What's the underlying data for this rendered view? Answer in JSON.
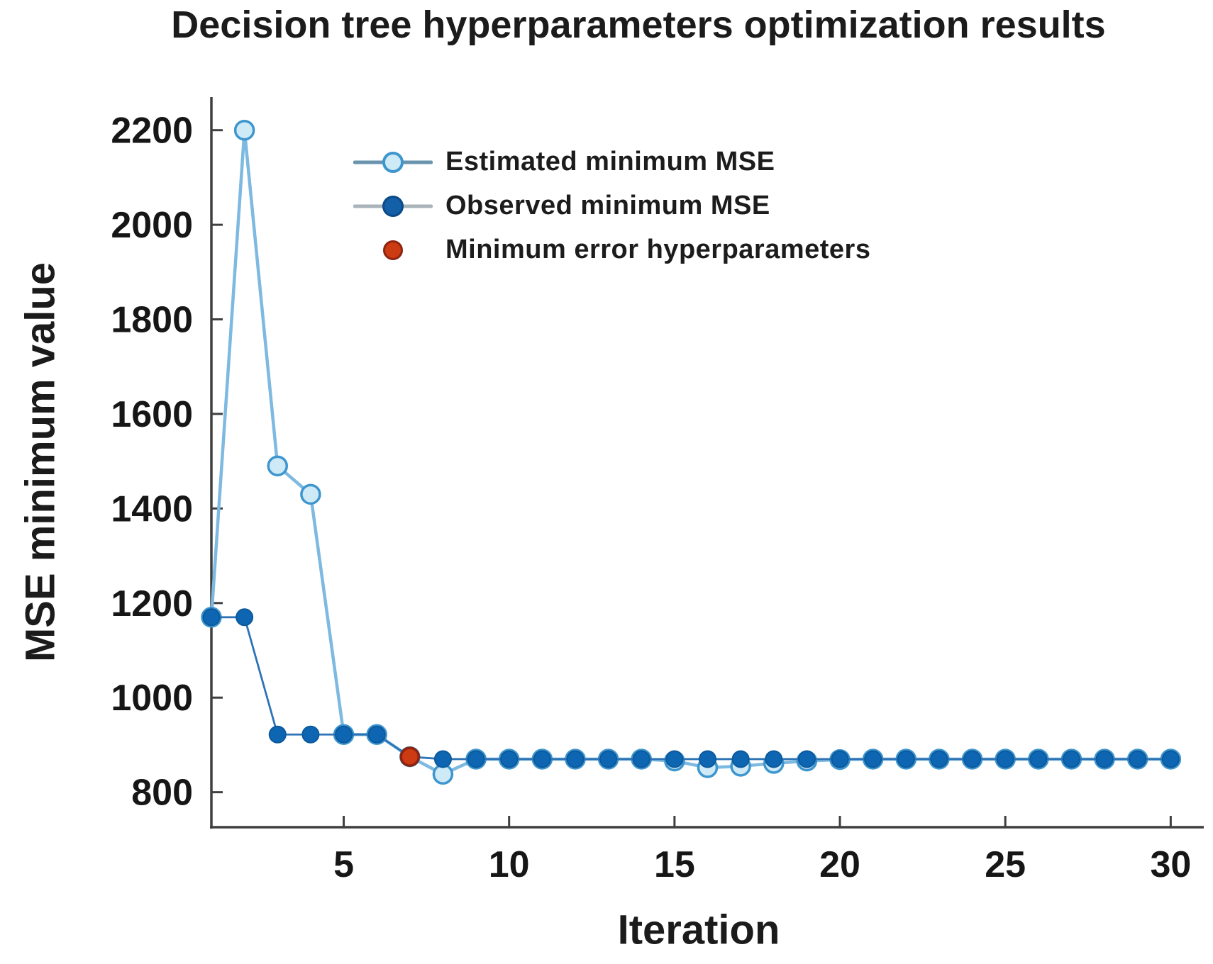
{
  "chart": {
    "title": "Decision tree hyperparameters optimization results",
    "xlabel": "Iteration",
    "ylabel": "MSE minimum value"
  },
  "legend": {
    "items": [
      {
        "label": "Estimated minimum MSE",
        "marker": "open-circle-light-blue-with-line"
      },
      {
        "label": "Observed minimum MSE",
        "marker": "filled-circle-dark-blue-with-line"
      },
      {
        "label": "Minimum error hyperparameters",
        "marker": "filled-circle-red"
      }
    ]
  },
  "colors": {
    "background": "#ffffff",
    "axis": "#3f3f3f",
    "text": "#1b1b1b",
    "tick_text": "#161616",
    "estimated_line": "#7db9e0",
    "estimated_marker_fill": "#cfeaf7",
    "estimated_marker_stroke": "#3e96ce",
    "observed_line": "#2d73b5",
    "observed_marker_fill": "#0e66b2",
    "observed_marker_stroke": "#0b599c",
    "min_marker_fill": "#cd3b12",
    "min_marker_stroke": "#8e2310",
    "legend_line_estimated": "#6a93ae",
    "legend_line_observed": "#a9b3ba"
  },
  "chart_data": {
    "type": "line",
    "title": "Decision tree hyperparameters optimization results",
    "xlabel": "Iteration",
    "ylabel": "MSE minimum value",
    "x": [
      1,
      2,
      3,
      4,
      5,
      6,
      7,
      8,
      9,
      10,
      11,
      12,
      13,
      14,
      15,
      16,
      17,
      18,
      19,
      20,
      21,
      22,
      23,
      24,
      25,
      26,
      27,
      28,
      29,
      30
    ],
    "series": [
      {
        "name": "Estimated minimum MSE",
        "marker": "open-circle",
        "values": [
          1170,
          2200,
          1490,
          1430,
          922,
          922,
          875,
          838,
          870,
          870,
          870,
          870,
          870,
          870,
          866,
          852,
          855,
          861,
          866,
          869,
          870,
          870,
          870,
          870,
          870,
          870,
          870,
          870,
          870,
          870
        ]
      },
      {
        "name": "Observed minimum MSE",
        "marker": "filled-circle",
        "values": [
          1170,
          1170,
          922,
          922,
          922,
          922,
          875,
          870,
          870,
          870,
          870,
          870,
          870,
          870,
          870,
          870,
          870,
          870,
          870,
          870,
          870,
          870,
          870,
          870,
          870,
          870,
          870,
          870,
          870,
          870
        ]
      }
    ],
    "annotations": [
      {
        "name": "Minimum error hyperparameters",
        "x": 7,
        "y": 875
      }
    ],
    "x_ticks": [
      5,
      10,
      15,
      20,
      25,
      30
    ],
    "y_ticks": [
      800,
      1000,
      1200,
      1400,
      1600,
      1800,
      2000,
      2200
    ],
    "xlim": [
      1,
      31
    ],
    "ylim": [
      726,
      2270
    ],
    "grid": false,
    "legend_position": "upper-left-inside"
  }
}
